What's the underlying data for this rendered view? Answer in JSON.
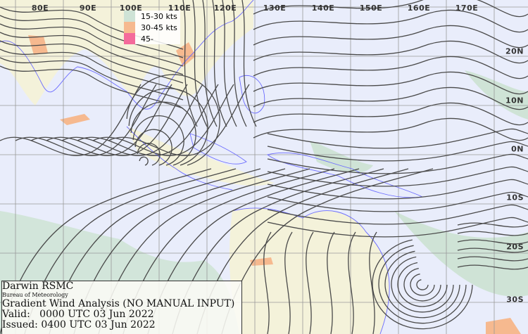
{
  "map": {
    "longitude_labels": [
      "80E",
      "90E",
      "100E",
      "110E",
      "120E",
      "130E",
      "140E",
      "150E",
      "160E",
      "170E"
    ],
    "latitude_labels": [
      "20N",
      "10N",
      "0N",
      "10S",
      "20S",
      "30S"
    ],
    "colors": {
      "background": "#e9edfb",
      "land": "#f4f2da",
      "wind_15_30": "#cfe3d6",
      "wind_30_45": "#f6b98f",
      "wind_45": "#f46a9b",
      "streamline": "#4a4a4a",
      "coastline": "#6b6bff",
      "grid": "#999999"
    }
  },
  "legend": {
    "items": [
      {
        "label": "15-30 kts",
        "color": "#cfe3d6"
      },
      {
        "label": "30-45 kts",
        "color": "#f6b98f"
      },
      {
        "label": "45-",
        "color": "#f46a9b"
      }
    ]
  },
  "info": {
    "office": "Darwin RSMC",
    "agency": "Bureau of Meteorology",
    "product": "Gradient Wind Analysis (NO MANUAL INPUT)",
    "valid": "Valid:   0000 UTC 03 Jun 2022",
    "issued": "Issued: 0400 UTC 03 Jun 2022"
  }
}
